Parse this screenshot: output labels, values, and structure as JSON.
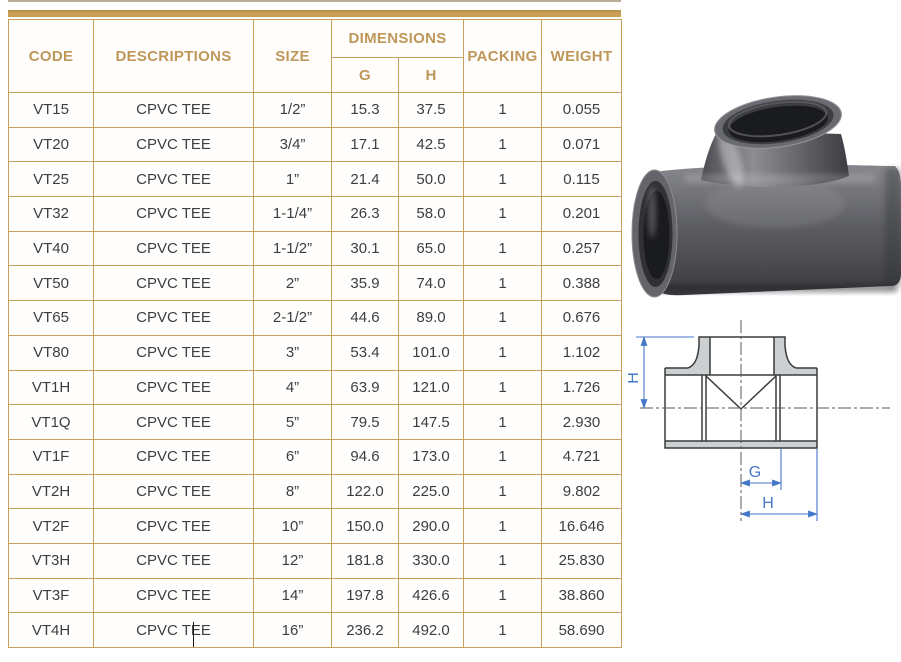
{
  "colors": {
    "accent_gold": "#c8a055",
    "table_border": "#c7a05e",
    "header_text": "#bf9759",
    "body_text": "#3e3e3e",
    "dimension_blue": "#4577c9"
  },
  "table": {
    "header": {
      "code": "CODE",
      "descriptions": "DESCRIPTIONS",
      "size": "SIZE",
      "dimensions": "DIMENSIONS",
      "dim_g": "G",
      "dim_h": "H",
      "packing": "PACKING",
      "weight": "WEIGHT"
    },
    "rows": [
      {
        "code": "VT15",
        "description": "CPVC TEE",
        "size": "1/2”",
        "g": "15.3",
        "h": "37.5",
        "packing": "1",
        "weight": "0.055"
      },
      {
        "code": "VT20",
        "description": "CPVC TEE",
        "size": "3/4”",
        "g": "17.1",
        "h": "42.5",
        "packing": "1",
        "weight": "0.071"
      },
      {
        "code": "VT25",
        "description": "CPVC TEE",
        "size": "1”",
        "g": "21.4",
        "h": "50.0",
        "packing": "1",
        "weight": "0.115"
      },
      {
        "code": "VT32",
        "description": "CPVC TEE",
        "size": "1-1/4”",
        "g": "26.3",
        "h": "58.0",
        "packing": "1",
        "weight": "0.201"
      },
      {
        "code": "VT40",
        "description": "CPVC TEE",
        "size": "1-1/2”",
        "g": "30.1",
        "h": "65.0",
        "packing": "1",
        "weight": "0.257"
      },
      {
        "code": "VT50",
        "description": "CPVC TEE",
        "size": "2”",
        "g": "35.9",
        "h": "74.0",
        "packing": "1",
        "weight": "0.388"
      },
      {
        "code": "VT65",
        "description": "CPVC TEE",
        "size": "2-1/2”",
        "g": "44.6",
        "h": "89.0",
        "packing": "1",
        "weight": "0.676"
      },
      {
        "code": "VT80",
        "description": "CPVC TEE",
        "size": "3”",
        "g": "53.4",
        "h": "101.0",
        "packing": "1",
        "weight": "1.102"
      },
      {
        "code": "VT1H",
        "description": "CPVC TEE",
        "size": "4”",
        "g": "63.9",
        "h": "121.0",
        "packing": "1",
        "weight": "1.726"
      },
      {
        "code": "VT1Q",
        "description": "CPVC TEE",
        "size": "5”",
        "g": "79.5",
        "h": "147.5",
        "packing": "1",
        "weight": "2.930"
      },
      {
        "code": "VT1F",
        "description": "CPVC TEE",
        "size": "6”",
        "g": "94.6",
        "h": "173.0",
        "packing": "1",
        "weight": "4.721"
      },
      {
        "code": "VT2H",
        "description": "CPVC TEE",
        "size": "8”",
        "g": "122.0",
        "h": "225.0",
        "packing": "1",
        "weight": "9.802"
      },
      {
        "code": "VT2F",
        "description": "CPVC TEE",
        "size": "10”",
        "g": "150.0",
        "h": "290.0",
        "packing": "1",
        "weight": "16.646"
      },
      {
        "code": "VT3H",
        "description": "CPVC TEE",
        "size": "12”",
        "g": "181.8",
        "h": "330.0",
        "packing": "1",
        "weight": "25.830"
      },
      {
        "code": "VT3F",
        "description": "CPVC TEE",
        "size": "14”",
        "g": "197.8",
        "h": "426.6",
        "packing": "1",
        "weight": "38.860"
      },
      {
        "code": "VT4H",
        "description": "CPVC TEE",
        "size": "16”",
        "g": "236.2",
        "h": "492.0",
        "packing": "1",
        "weight": "58.690",
        "caret": true
      }
    ]
  },
  "drawing": {
    "label_h_side": "H",
    "label_g_bottom": "G",
    "label_h_bottom": "H"
  }
}
